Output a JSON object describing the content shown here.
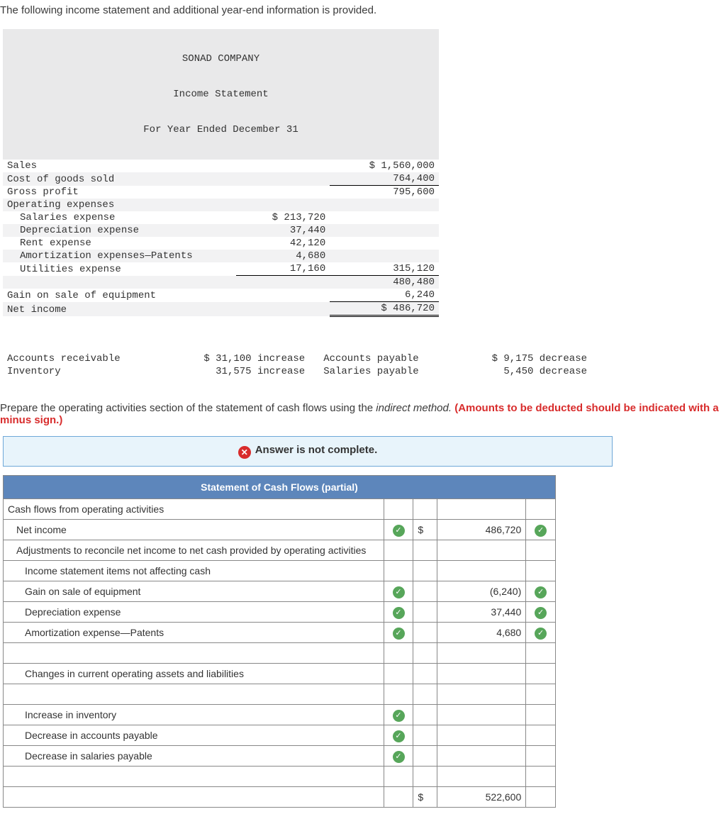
{
  "intro": "The following income statement and additional year-end information is provided.",
  "income_statement": {
    "company": "SONAD COMPANY",
    "title": "Income Statement",
    "period": "For Year Ended December 31",
    "rows": [
      {
        "label": "Sales",
        "sub": "",
        "amount": "$ 1,560,000"
      },
      {
        "label": "Cost of goods sold",
        "sub": "",
        "amount": "764,400",
        "underline_amount": "single-bottom"
      },
      {
        "label": "Gross profit",
        "sub": "",
        "amount": "795,600"
      },
      {
        "label": "Operating expenses",
        "sub": "",
        "amount": ""
      },
      {
        "label": "Salaries expense",
        "indent": true,
        "sub": "$ 213,720",
        "amount": ""
      },
      {
        "label": "Depreciation expense",
        "indent": true,
        "sub": "37,440",
        "amount": ""
      },
      {
        "label": "Rent expense",
        "indent": true,
        "sub": "42,120",
        "amount": ""
      },
      {
        "label": "Amortization expenses—Patents",
        "indent": true,
        "sub": "4,680",
        "amount": ""
      },
      {
        "label": "Utilities expense",
        "indent": true,
        "sub": "17,160",
        "underline_sub": "single-bottom",
        "amount": "315,120",
        "underline_amount": "single-bottom"
      },
      {
        "label": "",
        "sub": "",
        "amount": "480,480"
      },
      {
        "label": "Gain on sale of equipment",
        "sub": "",
        "amount": "6,240",
        "underline_amount": "single-bottom"
      },
      {
        "label": "Net income",
        "sub": "",
        "amount": "$ 486,720",
        "underline_amount": "double-bottom"
      }
    ]
  },
  "additional_info": {
    "rows": [
      {
        "l1": "Accounts receivable",
        "v1": "$ 31,100 increase",
        "l2": "Accounts payable",
        "v2": "$ 9,175 decrease"
      },
      {
        "l1": "Inventory",
        "v1": "31,575 increase",
        "l2": "Salaries payable",
        "v2": "5,450 decrease"
      }
    ]
  },
  "instruction": {
    "text": "Prepare the operating activities section of the statement of cash flows using the ",
    "em": "indirect method.",
    "red": " (Amounts to be deducted should be indicated with a minus sign.)"
  },
  "banner": "Answer is not complete.",
  "cashflow": {
    "header": "Statement of Cash Flows (partial)",
    "rows": [
      {
        "label": "Cash flows from operating activities",
        "indent": 0
      },
      {
        "label": "Net income",
        "indent": 1,
        "check": true,
        "dollar": "$",
        "value": "486,720",
        "check2": true
      },
      {
        "label": "Adjustments to reconcile net income to net cash provided by operating activities",
        "indent": 1
      },
      {
        "label": "Income statement items not affecting cash",
        "indent": 2
      },
      {
        "label": "Gain on sale of equipment",
        "indent": 2,
        "check": true,
        "value": "(6,240)",
        "check2": true
      },
      {
        "label": "Depreciation expense",
        "indent": 2,
        "check": true,
        "value": "37,440",
        "check2": true
      },
      {
        "label": "Amortization expense—Patents",
        "indent": 2,
        "check": true,
        "value": "4,680",
        "check2": true
      },
      {
        "label": "",
        "indent": 2
      },
      {
        "label": "Changes in current operating assets and liabilities",
        "indent": 2
      },
      {
        "label": "",
        "indent": 2
      },
      {
        "label": "Increase in inventory",
        "indent": 2,
        "check": true
      },
      {
        "label": "Decrease in accounts payable",
        "indent": 2,
        "check": true
      },
      {
        "label": "Decrease in salaries payable",
        "indent": 2,
        "check": true
      },
      {
        "label": "",
        "indent": 2
      },
      {
        "label": "",
        "indent": 0,
        "dollar": "$",
        "value": "522,600"
      }
    ]
  }
}
